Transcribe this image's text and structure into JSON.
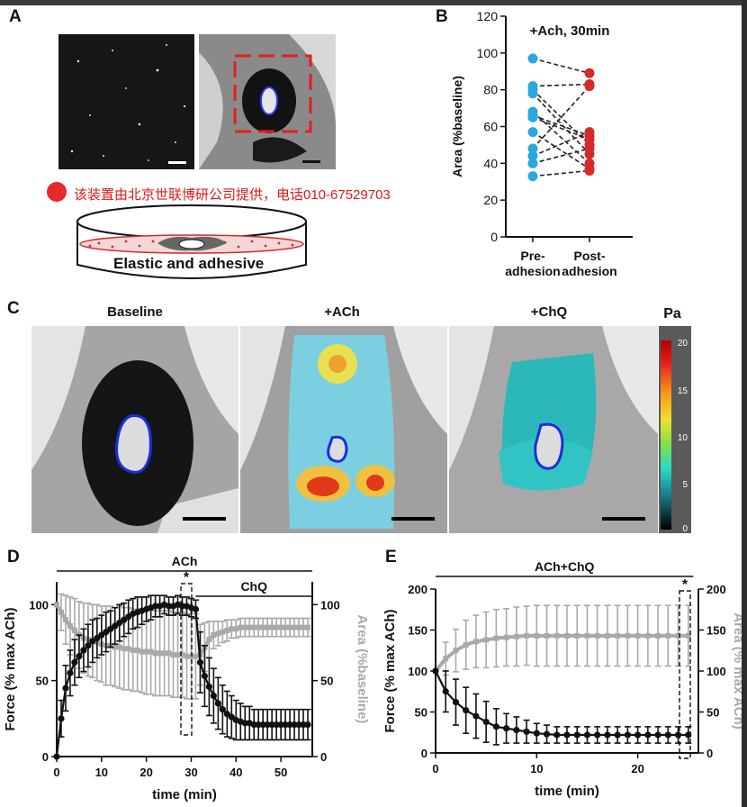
{
  "panels": {
    "a": "A",
    "b": "B",
    "c": "C",
    "d": "D",
    "e": "E"
  },
  "panel_a": {
    "dish_label": "Elastic and adhesive",
    "watermark": "该装置由北京世联博研公司提供，电话010-67529703"
  },
  "panel_c": {
    "titles": [
      "Baseline",
      "+ACh",
      "+ChQ"
    ],
    "colorbar": {
      "unit": "Pa",
      "ticks": [
        "20",
        "15",
        "10",
        "5",
        "0"
      ]
    }
  },
  "colors": {
    "blue": "#29a8e0",
    "red": "#d42a2a",
    "gray": "#a9a9a9",
    "black": "#111111"
  },
  "chart_data": [
    {
      "panel": "B",
      "type": "scatter",
      "title": "+Ach, 30min",
      "ylabel": "Area (%baseline)",
      "categories": [
        "Pre-\nadhesion",
        "Post-\nadhesion"
      ],
      "cat_lines": [
        [
          "Pre-",
          "adhesion"
        ],
        [
          "Post-",
          "adhesion"
        ]
      ],
      "ylim": [
        0,
        120
      ],
      "yticks": [
        "0",
        "20",
        "40",
        "60",
        "80",
        "100",
        "120"
      ],
      "pairs": [
        [
          97,
          89
        ],
        [
          82,
          83
        ],
        [
          80,
          50
        ],
        [
          78,
          45
        ],
        [
          68,
          40
        ],
        [
          66,
          55
        ],
        [
          65,
          53
        ],
        [
          57,
          37
        ],
        [
          48,
          82
        ],
        [
          44,
          57
        ],
        [
          40,
          48
        ],
        [
          33,
          36
        ]
      ]
    },
    {
      "panel": "D",
      "type": "line",
      "xlabel": "time (min)",
      "ylabel": "Force (% max ACh)",
      "ylabel2": "Area (%baseline)",
      "xlim": [
        0,
        57
      ],
      "ylim": [
        0,
        115
      ],
      "xticks": [
        "0",
        "10",
        "20",
        "30",
        "40",
        "50"
      ],
      "yticks": [
        "0",
        "50",
        "100"
      ],
      "y2ticks": [
        "0",
        "50",
        "100"
      ],
      "bars": [
        {
          "label": "ACh",
          "from": 0,
          "to": 57
        },
        {
          "label": "ChQ",
          "from": 31,
          "to": 57
        }
      ],
      "annotation": "*",
      "series": [
        {
          "name": "Force",
          "color": "#111111",
          "x": [
            0,
            1,
            2,
            3,
            4,
            5,
            6,
            7,
            8,
            9,
            10,
            11,
            12,
            13,
            14,
            15,
            16,
            17,
            18,
            19,
            20,
            21,
            22,
            23,
            24,
            25,
            26,
            27,
            28,
            29,
            30,
            31,
            32,
            33,
            34,
            35,
            36,
            37,
            38,
            39,
            40,
            41,
            42,
            43,
            44,
            45,
            46,
            47,
            48,
            49,
            50,
            51,
            52,
            53,
            54,
            55,
            56
          ],
          "values": [
            0,
            25,
            45,
            55,
            62,
            66,
            70,
            73,
            76,
            78,
            80,
            82,
            84,
            86,
            88,
            90,
            92,
            94,
            95,
            96,
            97,
            98,
            99,
            99,
            100,
            99,
            99,
            100,
            99,
            99,
            98,
            97,
            62,
            53,
            46,
            40,
            35,
            31,
            28,
            26,
            24,
            23,
            22,
            22,
            21,
            21,
            21,
            21,
            21,
            21,
            21,
            21,
            21,
            21,
            21,
            21,
            21
          ],
          "err": [
            0,
            12,
            15,
            15,
            15,
            14,
            14,
            14,
            14,
            13,
            13,
            13,
            12,
            12,
            12,
            11,
            11,
            10,
            10,
            9,
            8,
            8,
            7,
            7,
            6,
            6,
            6,
            6,
            6,
            6,
            6,
            6,
            20,
            20,
            19,
            18,
            17,
            16,
            15,
            14,
            13,
            12,
            11,
            11,
            10,
            10,
            10,
            10,
            10,
            10,
            10,
            10,
            10,
            10,
            10,
            10,
            10
          ]
        },
        {
          "name": "Area",
          "color": "#a9a9a9",
          "x": [
            0,
            1,
            2,
            3,
            4,
            5,
            6,
            7,
            8,
            9,
            10,
            11,
            12,
            13,
            14,
            15,
            16,
            17,
            18,
            19,
            20,
            21,
            22,
            23,
            24,
            25,
            26,
            27,
            28,
            29,
            30,
            31,
            32,
            33,
            34,
            35,
            36,
            37,
            38,
            39,
            40,
            41,
            42,
            43,
            44,
            45,
            46,
            47,
            48,
            49,
            50,
            51,
            52,
            53,
            54,
            55,
            56
          ],
          "values": [
            100,
            95,
            90,
            86,
            83,
            80,
            78,
            77,
            76,
            75,
            74,
            73,
            73,
            72,
            72,
            71,
            71,
            70,
            70,
            69,
            69,
            69,
            68,
            68,
            68,
            68,
            67,
            67,
            67,
            66,
            66,
            66,
            67,
            72,
            77,
            80,
            81,
            82,
            83,
            84,
            84,
            85,
            85,
            85,
            85,
            85,
            85,
            85,
            85,
            85,
            85,
            85,
            85,
            85,
            85,
            85,
            85
          ],
          "err": [
            0,
            12,
            16,
            19,
            21,
            22,
            23,
            24,
            24,
            25,
            25,
            26,
            26,
            26,
            27,
            27,
            27,
            27,
            27,
            27,
            28,
            28,
            28,
            28,
            28,
            28,
            28,
            28,
            28,
            28,
            28,
            28,
            20,
            16,
            12,
            9,
            8,
            7,
            7,
            6,
            6,
            6,
            6,
            6,
            6,
            6,
            6,
            6,
            6,
            6,
            6,
            6,
            6,
            6,
            6,
            6,
            6
          ]
        }
      ]
    },
    {
      "panel": "E",
      "type": "line",
      "title": "ACh+ChQ",
      "xlabel": "time (min)",
      "ylabel": "Force (% max ACh)",
      "ylabel2": "Area (% max  ACh)",
      "xlim": [
        0,
        26
      ],
      "ylim": [
        0,
        200
      ],
      "xticks": [
        "0",
        "10",
        "20"
      ],
      "yticks": [
        "0",
        "50",
        "100",
        "150",
        "200"
      ],
      "y2ticks": [
        "0",
        "50",
        "100",
        "150",
        "200"
      ],
      "bars": [
        {
          "label": "ACh+ChQ",
          "from": 0,
          "to": 25.5
        }
      ],
      "annotation": "*",
      "series": [
        {
          "name": "Force",
          "color": "#111111",
          "x": [
            0,
            1,
            2,
            3,
            4,
            5,
            6,
            7,
            8,
            9,
            10,
            11,
            12,
            13,
            14,
            15,
            16,
            17,
            18,
            19,
            20,
            21,
            22,
            23,
            24,
            25
          ],
          "values": [
            100,
            75,
            62,
            52,
            45,
            38,
            32,
            30,
            28,
            26,
            24,
            23,
            22,
            22,
            22,
            22,
            22,
            22,
            22,
            22,
            22,
            22,
            22,
            22,
            22,
            22
          ],
          "err": [
            0,
            25,
            28,
            28,
            27,
            25,
            22,
            18,
            16,
            14,
            12,
            11,
            10,
            10,
            10,
            10,
            10,
            10,
            10,
            10,
            10,
            10,
            10,
            10,
            10,
            10
          ]
        },
        {
          "name": "Area",
          "color": "#a9a9a9",
          "x": [
            0,
            1,
            2,
            3,
            4,
            5,
            6,
            7,
            8,
            9,
            10,
            11,
            12,
            13,
            14,
            15,
            16,
            17,
            18,
            19,
            20,
            21,
            22,
            23,
            24,
            25
          ],
          "values": [
            100,
            115,
            125,
            132,
            136,
            138,
            140,
            141,
            142,
            143,
            143,
            143,
            143,
            143,
            143,
            143,
            143,
            143,
            143,
            143,
            143,
            143,
            143,
            143,
            143,
            143
          ],
          "err": [
            0,
            20,
            26,
            30,
            32,
            34,
            35,
            35,
            36,
            36,
            37,
            37,
            37,
            37,
            37,
            37,
            37,
            37,
            37,
            37,
            37,
            37,
            37,
            37,
            37,
            37
          ]
        }
      ]
    }
  ]
}
